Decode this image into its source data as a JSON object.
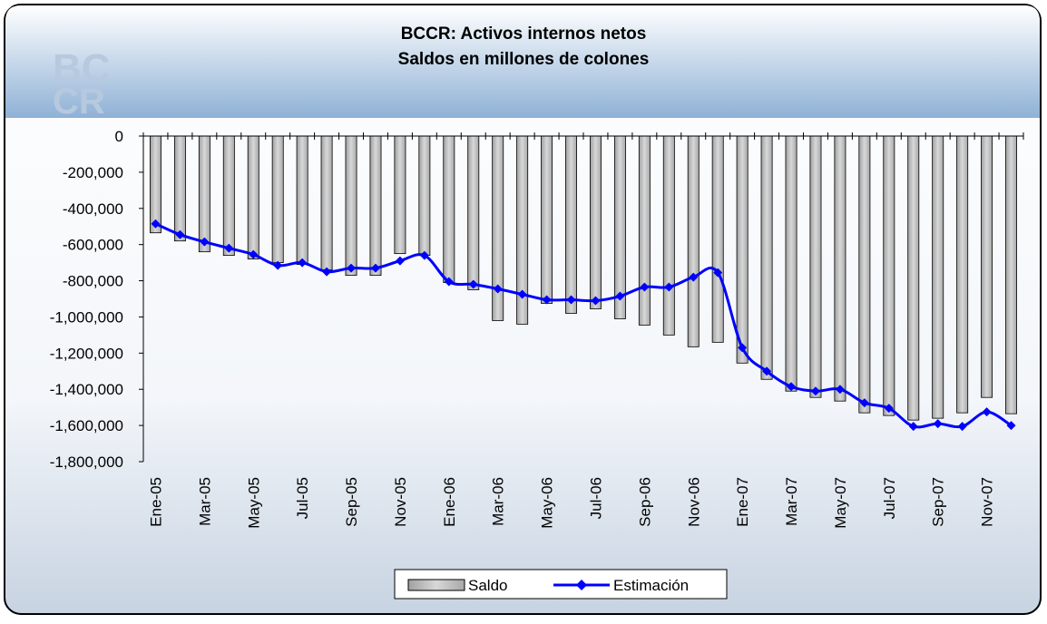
{
  "chart_data": {
    "type": "bar-line",
    "title": "BCCR: Activos internos netos",
    "subtitle": "Saldos en millones de colones",
    "categories": [
      "Ene-05",
      null,
      "Mar-05",
      null,
      "May-05",
      null,
      "Jul-05",
      null,
      "Sep-05",
      null,
      "Nov-05",
      null,
      "Ene-06",
      null,
      "Mar-06",
      null,
      "May-06",
      null,
      "Jul-06",
      null,
      "Sep-06",
      null,
      "Nov-06",
      null,
      "Ene-07",
      null,
      "Mar-07",
      null,
      "May-07",
      null,
      "Jul-07",
      null,
      "Sep-07",
      null,
      "Nov-07",
      null
    ],
    "series": [
      {
        "name": "Saldo",
        "kind": "bar",
        "color": "#c0c0c0",
        "values": [
          -535000,
          -580000,
          -640000,
          -660000,
          -680000,
          -700000,
          -710000,
          -740000,
          -770000,
          -770000,
          -650000,
          -660000,
          -810000,
          -850000,
          -1020000,
          -1040000,
          -925000,
          -980000,
          -955000,
          -1010000,
          -1045000,
          -1100000,
          -1165000,
          -1140000,
          -1255000,
          -1345000,
          -1410000,
          -1445000,
          -1465000,
          -1530000,
          -1545000,
          -1570000,
          -1560000,
          -1530000,
          -1445000,
          -1535000
        ]
      },
      {
        "name": "Estimación",
        "kind": "line",
        "color": "#0000ff",
        "values": [
          -485000,
          -545000,
          -585000,
          -620000,
          -655000,
          -715000,
          -700000,
          -750000,
          -730000,
          -730000,
          -690000,
          -660000,
          -805000,
          -820000,
          -845000,
          -875000,
          -905000,
          -905000,
          -910000,
          -885000,
          -835000,
          -835000,
          -780000,
          -755000,
          -1170000,
          -1300000,
          -1385000,
          -1410000,
          -1400000,
          -1475000,
          -1505000,
          -1605000,
          -1590000,
          -1605000,
          -1525000,
          -1600000
        ]
      }
    ],
    "ylim": [
      -1800000,
      0
    ],
    "yticks": [
      0,
      {
        "value": -200000,
        "label": "-200,000"
      },
      {
        "value": -400000,
        "label": "-400,000"
      },
      {
        "value": -600000,
        "label": "-600,000"
      },
      {
        "value": -800000,
        "label": "-800,000"
      },
      {
        "value": -1000000,
        "label": "-1,000,000"
      },
      {
        "value": -1200000,
        "label": "-1,200,000"
      },
      {
        "value": -1400000,
        "label": "-1,400,000"
      },
      {
        "value": -1600000,
        "label": "-1,600,000"
      },
      {
        "value": -1800000,
        "label": "-1,800,000"
      }
    ],
    "legend": "bottom"
  }
}
